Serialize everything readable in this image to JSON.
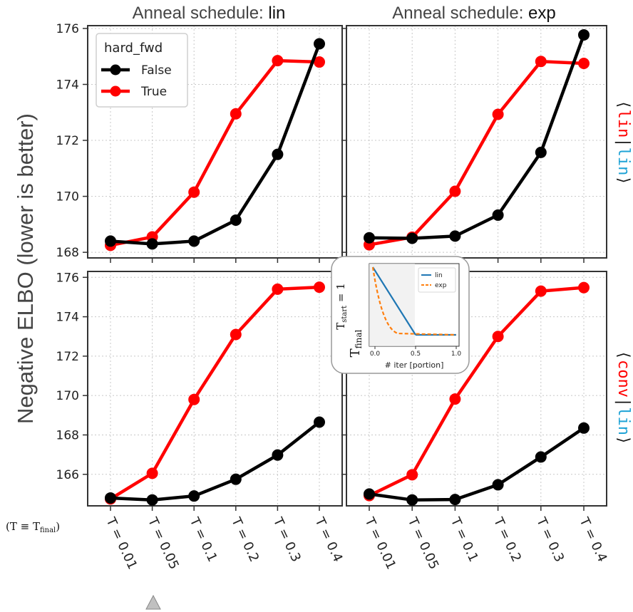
{
  "figure": {
    "ylabel": "Negative ELBO  (lower is better)",
    "xaxis_prefix": "(T ≡ T",
    "xaxis_prefix_sub": "final",
    "xaxis_prefix_end": ")",
    "row_labels": [
      {
        "left": "⟨",
        "a": "lin",
        "sep": "|",
        "b": "lin",
        "right": "⟩"
      },
      {
        "left": "⟨",
        "a": "conv",
        "sep": "|",
        "b": "lin",
        "right": "⟩"
      }
    ],
    "colors": {
      "false": "#000000",
      "true": "#ff0000",
      "row_label_a": "#ff0000",
      "row_label_b": "#1fa3d6",
      "grid": "#cccccc"
    }
  },
  "legend": {
    "title": "hard_fwd",
    "entries": [
      {
        "label": "False",
        "color": "#000000"
      },
      {
        "label": "True",
        "color": "#ff0000"
      }
    ]
  },
  "inset": {
    "ylabel_top": "T",
    "ylabel_top_sub": "start",
    "ylabel_top_end": " = 1",
    "ylabel_bottom": "T",
    "ylabel_bottom_sub": "final",
    "xlabel": "# iter [portion]",
    "xticks": [
      "0.0",
      "0.5",
      "1.0"
    ],
    "legend": [
      {
        "label": "lin",
        "color": "#1f77b4",
        "style": "solid"
      },
      {
        "label": "exp",
        "color": "#ff7f0e",
        "style": "dashed"
      }
    ]
  },
  "chart_data": [
    {
      "type": "line",
      "title_prefix": "Anneal schedule: ",
      "title_value": "lin",
      "categories": [
        "T = 0.01",
        "T = 0.05",
        "T = 0.1",
        "T = 0.2",
        "T = 0.3",
        "T = 0.4"
      ],
      "ylim": [
        167.8,
        176.1
      ],
      "yticks": [
        168,
        170,
        172,
        174,
        176
      ],
      "series": [
        {
          "name": "False",
          "color": "#000000",
          "values": [
            168.4,
            168.3,
            168.4,
            169.15,
            171.5,
            175.45
          ]
        },
        {
          "name": "True",
          "color": "#ff0000",
          "values": [
            168.25,
            168.55,
            170.15,
            172.95,
            174.85,
            174.8
          ]
        }
      ]
    },
    {
      "type": "line",
      "title_prefix": "Anneal schedule: ",
      "title_value": "exp",
      "categories": [
        "T = 0.01",
        "T = 0.05",
        "T = 0.1",
        "T = 0.2",
        "T = 0.3",
        "T = 0.4"
      ],
      "ylim": [
        167.8,
        176.1
      ],
      "yticks": [
        168,
        170,
        172,
        174,
        176
      ],
      "series": [
        {
          "name": "False",
          "color": "#000000",
          "values": [
            168.52,
            168.5,
            168.58,
            169.33,
            171.57,
            175.77
          ]
        },
        {
          "name": "True",
          "color": "#ff0000",
          "values": [
            168.27,
            168.54,
            170.18,
            172.93,
            174.82,
            174.75
          ]
        }
      ]
    },
    {
      "type": "line",
      "categories": [
        "T = 0.01",
        "T = 0.05",
        "T = 0.1",
        "T = 0.2",
        "T = 0.3",
        "T = 0.4"
      ],
      "ylim": [
        164.4,
        176.3
      ],
      "yticks": [
        166,
        168,
        170,
        172,
        174,
        176
      ],
      "series": [
        {
          "name": "False",
          "color": "#000000",
          "values": [
            164.8,
            164.7,
            164.9,
            165.75,
            166.98,
            168.65
          ]
        },
        {
          "name": "True",
          "color": "#ff0000",
          "values": [
            164.75,
            166.05,
            169.8,
            173.1,
            175.4,
            175.5
          ]
        }
      ]
    },
    {
      "type": "line",
      "categories": [
        "T = 0.01",
        "T = 0.05",
        "T = 0.1",
        "T = 0.2",
        "T = 0.3",
        "T = 0.4"
      ],
      "ylim": [
        164.4,
        176.3
      ],
      "yticks": [
        166,
        168,
        170,
        172,
        174,
        176
      ],
      "series": [
        {
          "name": "False",
          "color": "#000000",
          "values": [
            165.0,
            164.7,
            164.72,
            165.47,
            166.88,
            168.35
          ]
        },
        {
          "name": "True",
          "color": "#ff0000",
          "values": [
            164.92,
            165.98,
            169.82,
            173.0,
            175.3,
            175.48
          ]
        }
      ]
    }
  ]
}
